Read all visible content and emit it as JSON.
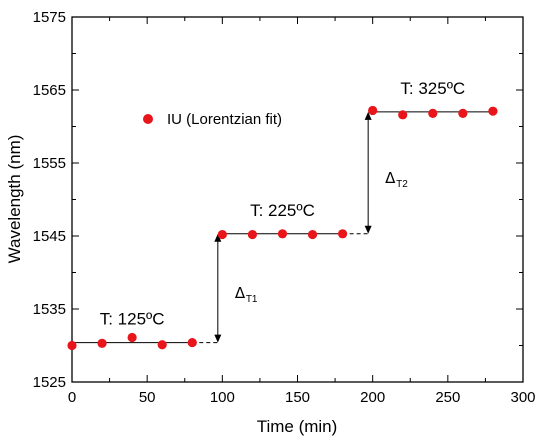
{
  "chart_data": {
    "type": "scatter",
    "xlabel": "Time (min)",
    "ylabel": "Wavelength (nm)",
    "xlim": [
      0,
      300
    ],
    "ylim": [
      1525,
      1575
    ],
    "xticks": [
      "0",
      "50",
      "100",
      "150",
      "200",
      "250",
      "300"
    ],
    "yticks": [
      "1525",
      "1535",
      "1545",
      "1555",
      "1565",
      "1575"
    ],
    "grid": false,
    "legend": {
      "position": "upper-left",
      "marker_color": "#e8151b"
    },
    "series": [
      {
        "name": "IU (Lorentzian fit)",
        "color": "#e8151b",
        "x": [
          0,
          20,
          40,
          60,
          80,
          100,
          120,
          140,
          160,
          180,
          200,
          220,
          240,
          260,
          280
        ],
        "y": [
          1530.0,
          1530.3,
          1531.1,
          1530.1,
          1530.4,
          1545.2,
          1545.2,
          1545.3,
          1545.2,
          1545.3,
          1562.2,
          1561.6,
          1561.8,
          1561.8,
          1562.1
        ]
      }
    ],
    "levels": [
      {
        "label": "T: 125ºC",
        "y": 1530.4,
        "x_start": 0,
        "x_end": 80,
        "dash_end": 97
      },
      {
        "label": "T: 225ºC",
        "y": 1545.3,
        "x_start": 100,
        "x_end": 180,
        "dash_end": 197
      },
      {
        "label": "T: 325ºC",
        "y": 1562.0,
        "x_start": 200,
        "x_end": 280
      }
    ],
    "steps": [
      {
        "label": "Δ",
        "subscript": "T1",
        "x": 97,
        "y_from": 1530.4,
        "y_to": 1545.3
      },
      {
        "label": "Δ",
        "subscript": "T2",
        "x": 197,
        "y_from": 1545.3,
        "y_to": 1562.0
      }
    ]
  }
}
